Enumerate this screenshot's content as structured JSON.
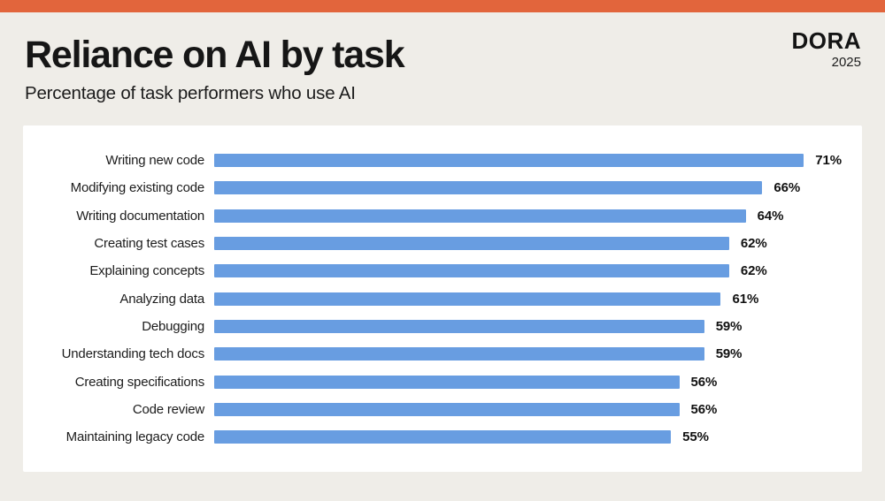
{
  "header": {
    "title": "Reliance on AI by task",
    "subtitle": "Percentage of task performers who use AI"
  },
  "logo": {
    "name": "DORA",
    "year": "2025"
  },
  "colors": {
    "accent_orange": "#E2653C",
    "background_beige": "#EFEDE8",
    "card_white": "#FFFFFF",
    "bar_blue": "#689DE1",
    "text_black": "#1C1C1C"
  },
  "chart_data": {
    "type": "bar",
    "orientation": "horizontal",
    "title": "Reliance on AI by task",
    "subtitle": "Percentage of task performers who use AI",
    "categories": [
      "Writing new code",
      "Modifying existing code",
      "Writing documentation",
      "Creating test cases",
      "Explaining concepts",
      "Analyzing data",
      "Debugging",
      "Understanding tech docs",
      "Creating specifications",
      "Code review",
      "Maintaining legacy code"
    ],
    "values": [
      71,
      66,
      64,
      62,
      62,
      61,
      59,
      59,
      56,
      56,
      55
    ],
    "labels": [
      "71%",
      "66%",
      "64%",
      "62%",
      "62%",
      "61%",
      "59%",
      "59%",
      "56%",
      "56%",
      "55%"
    ],
    "xlim": [
      0,
      78
    ],
    "bar_color": "#689DE1",
    "grid": false,
    "legend": false,
    "value_labels_position": "right-of-bar"
  }
}
